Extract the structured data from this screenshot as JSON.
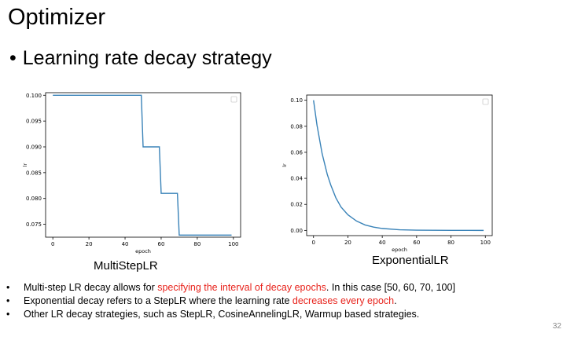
{
  "slide": {
    "title": "Optimizer",
    "heading": "Learning rate decay strategy",
    "bullet_glyph": "•",
    "page_number": "32"
  },
  "charts": {
    "left_caption": "MultiStepLR",
    "right_caption": "ExponentialLR"
  },
  "chart_data": [
    {
      "type": "line",
      "title": "",
      "xlabel": "epoch",
      "ylabel": "lr",
      "xlim": [
        -4,
        104
      ],
      "ylim": [
        0.0725,
        0.1005
      ],
      "xticks": [
        0,
        20,
        40,
        60,
        80,
        100
      ],
      "yticks": [
        0.075,
        0.08,
        0.085,
        0.09,
        0.095,
        0.1
      ],
      "ytick_decimals": 3,
      "grid": false,
      "legend": "top-right (empty box)",
      "step": true,
      "series": [
        {
          "color": "#3a83b8",
          "x": [
            0,
            49,
            50,
            59,
            60,
            69,
            70,
            99
          ],
          "y": [
            0.1,
            0.1,
            0.09,
            0.09,
            0.081,
            0.081,
            0.0729,
            0.0729
          ]
        }
      ]
    },
    {
      "type": "line",
      "title": "",
      "xlabel": "epoch",
      "ylabel": "lr",
      "xlim": [
        -4,
        104
      ],
      "ylim": [
        -0.004,
        0.104
      ],
      "xticks": [
        0,
        20,
        40,
        60,
        80,
        100
      ],
      "yticks": [
        0.0,
        0.02,
        0.04,
        0.06,
        0.08,
        0.1
      ],
      "ytick_decimals": 2,
      "grid": false,
      "legend": "top-right (empty box)",
      "series": [
        {
          "color": "#3a83b8",
          "x": [
            0,
            2,
            5,
            8,
            10,
            13,
            16,
            20,
            25,
            30,
            35,
            40,
            50,
            60,
            70,
            80,
            90,
            99
          ],
          "y": [
            0.1,
            0.081,
            0.059,
            0.043,
            0.035,
            0.025,
            0.018,
            0.012,
            0.0072,
            0.0042,
            0.0025,
            0.0015,
            0.0005,
            0.0002,
            0.0001,
            4e-05,
            1e-05,
            0.0
          ]
        }
      ]
    }
  ],
  "bullets": [
    {
      "before": "Multi-step LR decay allows for ",
      "highlight": "specifying the interval of decay epochs",
      "after": ". In this case [50, 60, 70, 100]"
    },
    {
      "before": "Exponential decay refers to a StepLR where the learning rate ",
      "highlight": "decreases every epoch",
      "after": "."
    },
    {
      "before": "Other LR decay strategies, such as StepLR, CosineAnnelingLR, Warmup based strategies.",
      "highlight": "",
      "after": ""
    }
  ],
  "colors": {
    "highlight": "#e8231c",
    "line": "#3a83b8"
  }
}
